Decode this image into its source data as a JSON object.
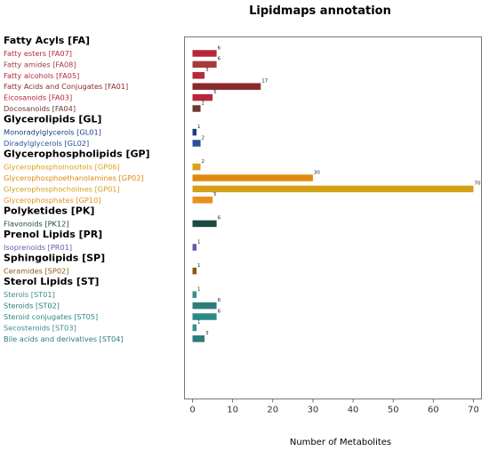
{
  "chart_data": {
    "type": "bar",
    "orientation": "horizontal",
    "title": "Lipidmaps annotation",
    "xlabel": "Number of Metabolites",
    "xlim": [
      -2,
      72
    ],
    "xticks": [
      0,
      10,
      20,
      30,
      40,
      50,
      60,
      70
    ],
    "grid": false,
    "groups": [
      {
        "name": "Fatty Acyls [FA]",
        "color": "#8b1a2b",
        "categories": [
          {
            "label": "Fatty esters [FA07]",
            "value": 6,
            "color": "#b5283b"
          },
          {
            "label": "Fatty amides [FA08]",
            "value": 6,
            "color": "#a53c3a"
          },
          {
            "label": "Fatty alcohols [FA05]",
            "value": 3,
            "color": "#b5283b"
          },
          {
            "label": "Fatty Acids and Conjugates [FA01]",
            "value": 17,
            "color": "#8a2a2e"
          },
          {
            "label": "Eicosanoids [FA03]",
            "value": 5,
            "color": "#b5283b"
          },
          {
            "label": "Docosanoids [FA04]",
            "value": 2,
            "color": "#6e3a2e"
          }
        ]
      },
      {
        "name": "Glycerolipids [GL]",
        "color": "#1f3f7a",
        "categories": [
          {
            "label": "Monoradylglycerols [GL01]",
            "value": 1,
            "color": "#1f3f7a"
          },
          {
            "label": "Diradylglycerols [GL02]",
            "value": 2,
            "color": "#2a5298"
          }
        ]
      },
      {
        "name": "Glycerophospholipids [GP]",
        "color": "#d4a017",
        "categories": [
          {
            "label": "Glycerophosphoinositols [GP06]",
            "value": 2,
            "color": "#d9a21b"
          },
          {
            "label": "Glycerophosphoethanolamines [GP02]",
            "value": 30,
            "color": "#e08a12"
          },
          {
            "label": "Glycerophosphocholines [GP01]",
            "value": 70,
            "color": "#d4a017"
          },
          {
            "label": "Glycerophosphates [GP10]",
            "value": 5,
            "color": "#e8901e"
          }
        ]
      },
      {
        "name": "Polyketides [PK]",
        "color": "#1d4a44",
        "categories": [
          {
            "label": "Flavonoids [PK12]",
            "value": 6,
            "color": "#1d4a44"
          }
        ]
      },
      {
        "name": "Prenol Lipids [PR]",
        "color": "#6a5aa8",
        "categories": [
          {
            "label": "Isoprenoids [PR01]",
            "value": 1,
            "color": "#6a5aa8"
          }
        ]
      },
      {
        "name": "Sphingolipids [SP]",
        "color": "#8a5a12",
        "categories": [
          {
            "label": "Ceramides [SP02]",
            "value": 1,
            "color": "#8a5a12"
          }
        ]
      },
      {
        "name": "Sterol Lipids [ST]",
        "color": "#2e7d7a",
        "categories": [
          {
            "label": "Sterols [ST01]",
            "value": 1,
            "color": "#3a8f8c"
          },
          {
            "label": "Steroids [ST02]",
            "value": 6,
            "color": "#2e7d7a"
          },
          {
            "label": "Steroid conjugates [ST05]",
            "value": 6,
            "color": "#2b8a84"
          },
          {
            "label": "Secosteroids [ST03]",
            "value": 1,
            "color": "#3a8f8c"
          },
          {
            "label": "Bile acids and derivatives [ST04]",
            "value": 3,
            "color": "#2e7d7a"
          }
        ]
      }
    ]
  }
}
